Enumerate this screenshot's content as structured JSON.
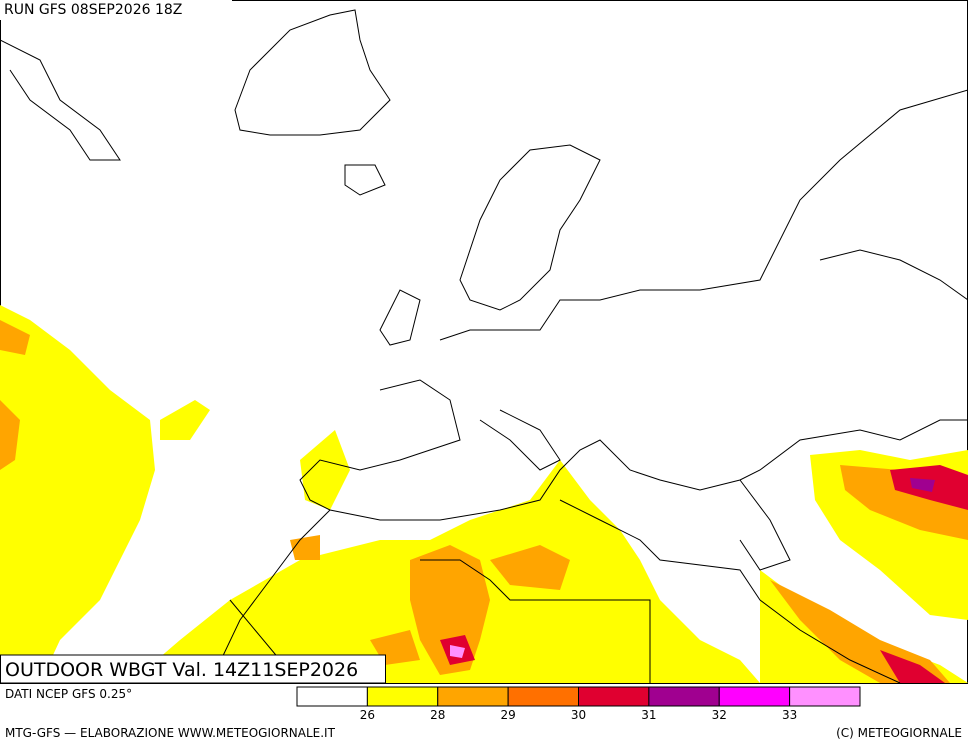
{
  "header": {
    "run": "RUN GFS 08SEP2026 18Z"
  },
  "map": {
    "title": "OUTDOOR WBGT Val. 14Z11SEP2026"
  },
  "footer": {
    "source": "DATI NCEP GFS 0.25°",
    "credit": "MTG-GFS — ELABORAZIONE WWW.METEOGIORNALE.IT",
    "copyright": "(C) METEOGIORNALE"
  },
  "legend": {
    "colors": [
      "#ffffff",
      "#ffff00",
      "#ffa500",
      "#ff7000",
      "#e00030",
      "#a00090",
      "#ff00ff",
      "#ff90ff"
    ],
    "ticks": [
      26,
      28,
      29,
      30,
      31,
      32,
      33
    ]
  }
}
